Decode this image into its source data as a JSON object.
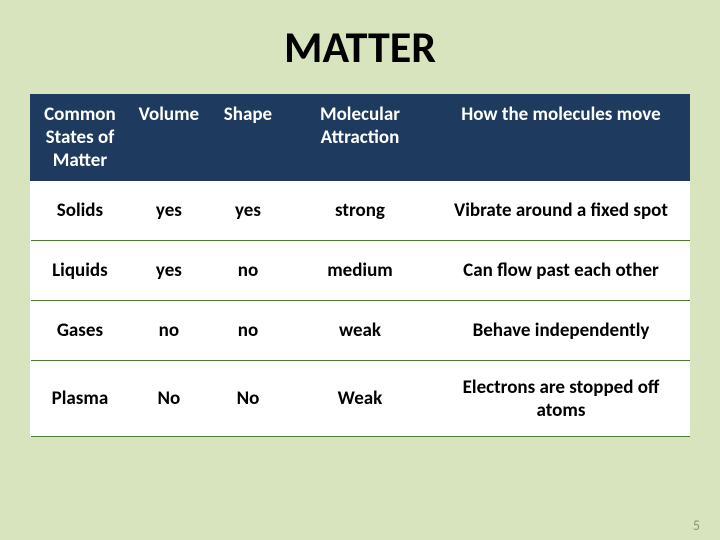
{
  "title": "MATTER",
  "page_number": "5",
  "colors": {
    "slide_background": "#d7e4bd",
    "header_background": "#1f3a5f",
    "header_text": "#ffffff",
    "cell_text": "#000000",
    "row_border": "#4a7c2f",
    "page_num_color": "#8a9a6f"
  },
  "table": {
    "columns": [
      "Common States of Matter",
      "Volume",
      "Shape",
      "Molecular Attraction",
      "How the molecules move"
    ],
    "rows": [
      {
        "state": "Solids",
        "volume": "yes",
        "shape": "yes",
        "attraction": "strong",
        "movement": "Vibrate around a fixed spot"
      },
      {
        "state": "Liquids",
        "volume": "yes",
        "shape": "no",
        "attraction": "medium",
        "movement": "Can flow past each other"
      },
      {
        "state": "Gases",
        "volume": "no",
        "shape": "no",
        "attraction": "weak",
        "movement": "Behave independently"
      },
      {
        "state": "Plasma",
        "volume": "No",
        "shape": "No",
        "attraction": "Weak",
        "movement": "Electrons are stopped off atoms"
      }
    ]
  }
}
